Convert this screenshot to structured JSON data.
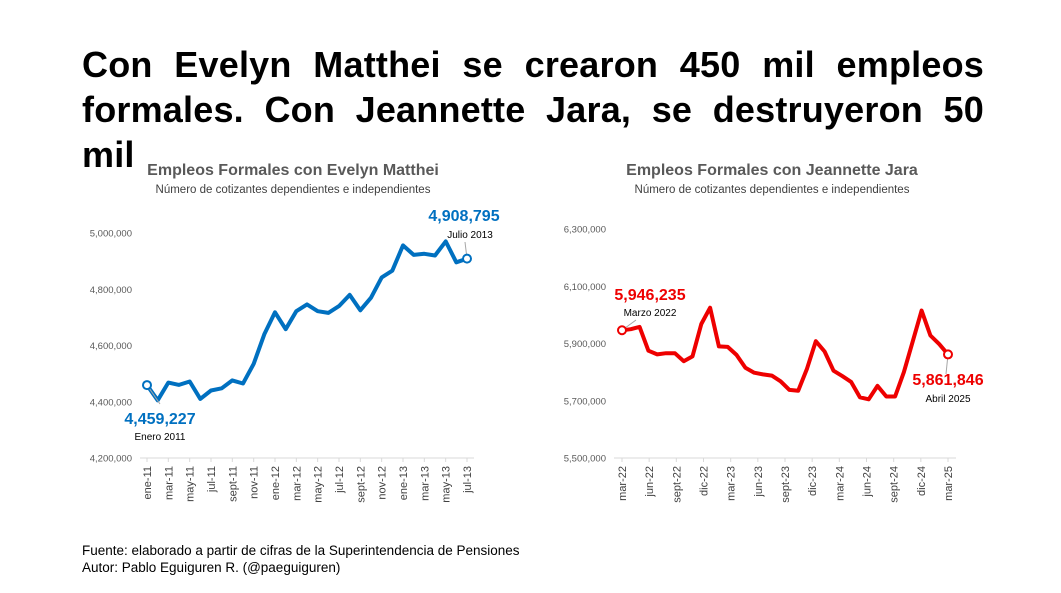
{
  "headline": {
    "line1": "Con Evelyn Matthei se crearon 450 mil empleos",
    "line2": "formales. Con Jeannette Jara, se destruyeron 50 mil"
  },
  "footer": {
    "source": "Fuente: elaborado a partir de cifras de la Superintendencia de Pensiones",
    "author": "Autor: Pablo Eguiguren R. (@paeguiguren)"
  },
  "chart_data": [
    {
      "type": "line",
      "title": "Empleos Formales con Evelyn Matthei",
      "subtitle": "Número de cotizantes dependientes e independientes",
      "color": "#0070C0",
      "ylim": [
        4200000,
        5000000
      ],
      "yticks": [
        4200000,
        4400000,
        4600000,
        4800000,
        5000000
      ],
      "ytick_labels": [
        "4,200,000",
        "4,400,000",
        "4,600,000",
        "4,800,000",
        "5,000,000"
      ],
      "xtick_labels": [
        "ene-11",
        "mar-11",
        "may-11",
        "jul-11",
        "sept-11",
        "nov-11",
        "ene-12",
        "mar-12",
        "may-12",
        "jul-12",
        "sept-12",
        "nov-12",
        "ene-13",
        "mar-13",
        "may-13",
        "jul-13"
      ],
      "values": [
        4459227,
        4405000,
        4468000,
        4460000,
        4472000,
        4410000,
        4440000,
        4448000,
        4476000,
        4465000,
        4535000,
        4640000,
        4718000,
        4658000,
        4722000,
        4746000,
        4722000,
        4716000,
        4740000,
        4780000,
        4725000,
        4770000,
        4842000,
        4866000,
        4956000,
        4922000,
        4926000,
        4920000,
        4970000,
        4896000,
        4908795
      ],
      "start_label": {
        "value": "4,459,227",
        "date": "Enero 2011"
      },
      "end_label": {
        "value": "4,908,795",
        "date": "Julio 2013"
      }
    },
    {
      "type": "line",
      "title": "Empleos Formales con Jeannette Jara",
      "subtitle": "Número de cotizantes dependientes e independientes",
      "color": "#EE0000",
      "ylim": [
        5500000,
        6300000
      ],
      "yticks": [
        5500000,
        5700000,
        5900000,
        6100000,
        6300000
      ],
      "ytick_labels": [
        "5,500,000",
        "5,700,000",
        "5,900,000",
        "6,100,000",
        "6,300,000"
      ],
      "xtick_labels": [
        "mar-22",
        "jun-22",
        "sept-22",
        "dic-22",
        "mar-23",
        "jun-23",
        "sept-23",
        "dic-23",
        "mar-24",
        "jun-24",
        "sept-24",
        "dic-24",
        "mar-25"
      ],
      "values": [
        5946235,
        5950000,
        5958000,
        5875000,
        5862000,
        5866000,
        5866000,
        5838000,
        5855000,
        5968000,
        6025000,
        5890000,
        5888000,
        5860000,
        5815000,
        5798000,
        5792000,
        5788000,
        5768000,
        5738000,
        5735000,
        5812000,
        5908000,
        5872000,
        5805000,
        5786000,
        5766000,
        5712000,
        5705000,
        5752000,
        5715000,
        5715000,
        5800000,
        5908000,
        6015000,
        5928000,
        5898000,
        5861846
      ],
      "start_label": {
        "value": "5,946,235",
        "date": "Marzo 2022"
      },
      "end_label": {
        "value": "5,861,846",
        "date": "Abril 2025"
      }
    }
  ]
}
